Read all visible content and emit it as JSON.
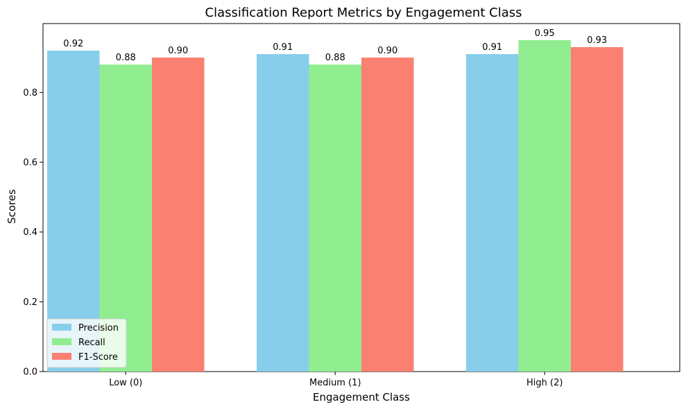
{
  "chart_data": {
    "type": "bar",
    "title": "Classification Report Metrics by Engagement Class",
    "xlabel": "Engagement Class",
    "ylabel": "Scores",
    "categories": [
      "Low (0)",
      "Medium (1)",
      "High (2)"
    ],
    "series": [
      {
        "name": "Precision",
        "values": [
          0.92,
          0.91,
          0.91
        ],
        "color": "#87CEEB"
      },
      {
        "name": "Recall",
        "values": [
          0.88,
          0.88,
          0.95
        ],
        "color": "#90EE90"
      },
      {
        "name": "F1-Score",
        "values": [
          0.9,
          0.9,
          0.93
        ],
        "color": "#FA8072"
      }
    ],
    "bar_labels": [
      [
        "0.92",
        "0.91",
        "0.91"
      ],
      [
        "0.88",
        "0.88",
        "0.95"
      ],
      [
        "0.90",
        "0.90",
        "0.93"
      ]
    ],
    "ylim": [
      0,
      0.9975
    ],
    "yticks": [
      0.0,
      0.2,
      0.4,
      0.6,
      0.8
    ],
    "ytick_labels": [
      "0.0",
      "0.2",
      "0.4",
      "0.6",
      "0.8"
    ],
    "legend_position": "lower-left",
    "grid": false
  }
}
